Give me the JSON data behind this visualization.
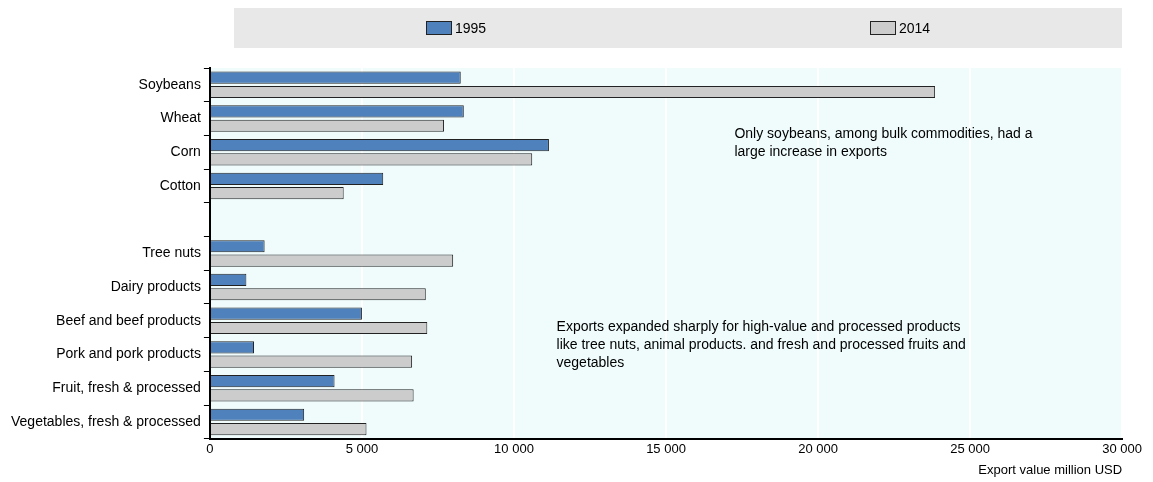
{
  "chart_data": {
    "type": "bar",
    "orientation": "horizontal",
    "categories": [
      "Soybeans",
      "Wheat",
      "Corn",
      "Cotton",
      null,
      "Tree nuts",
      "Dairy products",
      "Beef and beef products",
      "Pork and pork products",
      "Fruit, fresh & processed",
      "Vegetables, fresh & processed"
    ],
    "series": [
      {
        "name": "1995",
        "color": "#4f81bd",
        "values": [
          8250,
          8350,
          11150,
          5700,
          null,
          1800,
          1200,
          5000,
          1450,
          4100,
          3100
        ]
      },
      {
        "name": "2014",
        "color": "#cccccc",
        "values": [
          23850,
          7700,
          10600,
          4400,
          null,
          8000,
          7100,
          7150,
          6650,
          6700,
          5150
        ]
      }
    ],
    "xlim": [
      0,
      30000
    ],
    "xticks": [
      {
        "value": 0,
        "label": "0"
      },
      {
        "value": 5000,
        "label": "5 000"
      },
      {
        "value": 10000,
        "label": "10 000"
      },
      {
        "value": 15000,
        "label": "15 000"
      },
      {
        "value": 20000,
        "label": "20 000"
      },
      {
        "value": 25000,
        "label": "25 000"
      },
      {
        "value": 30000,
        "label": "30 000"
      }
    ],
    "xlabel": "Export value million USD",
    "grid": "x",
    "legend": "top",
    "annotations": [
      "Only soybeans, among bulk commodities, had a large increase in exports",
      "Exports expanded sharply for high-value and processed products like tree nuts, animal products. and fresh and processed fruits and vegetables"
    ]
  }
}
